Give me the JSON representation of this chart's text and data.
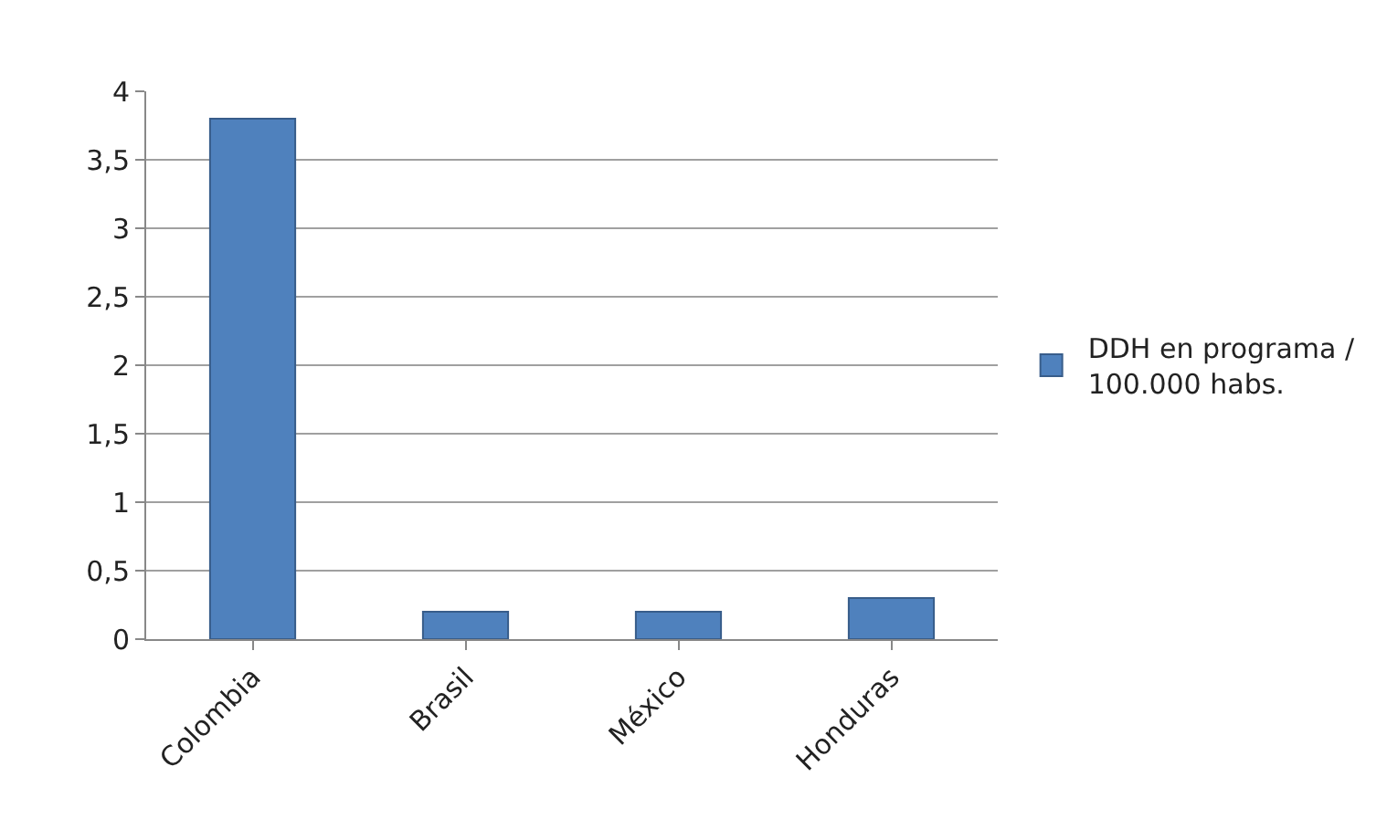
{
  "chart_data": {
    "type": "bar",
    "categories": [
      "Colombia",
      "Brasil",
      "México",
      "Honduras"
    ],
    "series": [
      {
        "name": "DDH en programa / 100.000 habs.",
        "color": "#4f81bd",
        "values": [
          3.8,
          0.2,
          0.2,
          0.3
        ]
      }
    ],
    "ylim": [
      0,
      4
    ],
    "yticks": [
      0,
      {
        "value": 0.5,
        "label": "0,5"
      },
      1,
      {
        "value": 1.5,
        "label": "1,5"
      },
      2,
      {
        "value": 2.5,
        "label": "2,5"
      },
      3,
      {
        "value": 3.5,
        "label": "3,5"
      },
      4
    ],
    "grid": "y",
    "legend": "right"
  }
}
